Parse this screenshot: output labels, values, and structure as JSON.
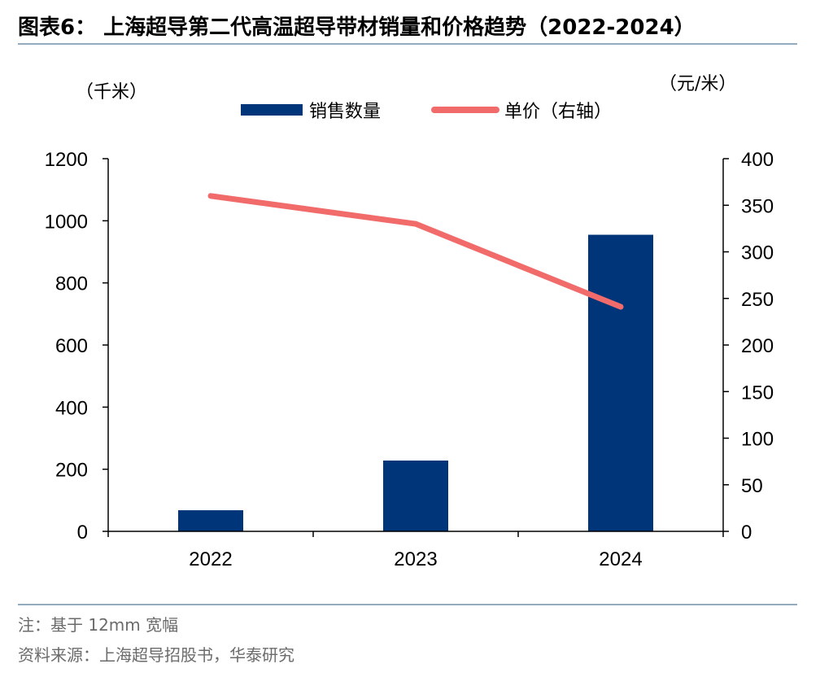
{
  "title": "图表6： 上海超导第二代高温超导带材销量和价格趋势（2022-2024）",
  "note": "注：基于 12mm 宽幅",
  "source": "资料来源：上海超导招股书，华泰研究",
  "colors": {
    "bar": "#00357a",
    "line": "#f26b6b",
    "rule": "#6f8fa8",
    "note_text": "#6b6b6b"
  },
  "chart_data": {
    "type": "bar",
    "categories": [
      "2022",
      "2023",
      "2024"
    ],
    "left_axis_unit": "（千米）",
    "right_axis_unit": "（元/米）",
    "ylim": [
      0,
      1200
    ],
    "yticks": [
      0,
      200,
      400,
      600,
      800,
      1000,
      1200
    ],
    "y2lim": [
      0,
      400
    ],
    "y2ticks": [
      0,
      50,
      100,
      150,
      200,
      250,
      300,
      350,
      400
    ],
    "legend_position": "top-center",
    "grid": false,
    "series": [
      {
        "name": "销售数量",
        "type": "bar",
        "axis": "left",
        "values": [
          68,
          228,
          955
        ]
      },
      {
        "name": "单价（右轴）",
        "type": "line",
        "axis": "right",
        "values": [
          360,
          330,
          241
        ]
      }
    ]
  }
}
